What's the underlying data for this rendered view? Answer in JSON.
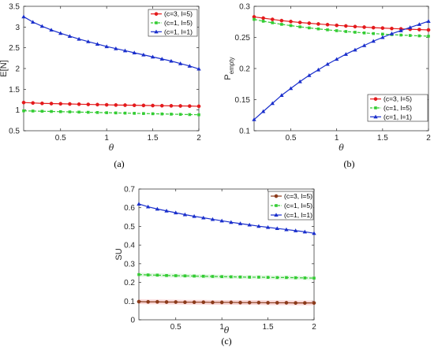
{
  "colors": {
    "red": "#e41a1c",
    "green": "#33cc33",
    "blue": "#1a2fcc",
    "brown": "#8b3a1a",
    "axis": "#262626"
  },
  "chart_data": [
    {
      "id": "a",
      "type": "line",
      "caption": "(a)",
      "xlabel": "θ",
      "ylabel": "E[N]",
      "xlim": [
        0.1,
        2
      ],
      "ylim": [
        0.5,
        3.5
      ],
      "xticks": [
        0.5,
        1,
        1.5,
        2
      ],
      "xtick_labels": [
        "0.5",
        "1",
        "1.5",
        "2"
      ],
      "yticks": [
        0.5,
        1,
        1.5,
        2,
        2.5,
        3,
        3.5
      ],
      "ytick_labels": [
        "0.5",
        "1",
        "1.5",
        "2",
        "2.5",
        "3",
        "3.5"
      ],
      "legend_position": "top-right",
      "x": [
        0.1,
        0.2,
        0.3,
        0.4,
        0.5,
        0.6,
        0.7,
        0.8,
        0.9,
        1.0,
        1.1,
        1.2,
        1.3,
        1.4,
        1.5,
        1.6,
        1.7,
        1.8,
        1.9,
        2.0
      ],
      "series": [
        {
          "name": "(c=3, l=5)",
          "color": "red",
          "marker": "circle",
          "dash": "solid",
          "values": [
            1.18,
            1.17,
            1.16,
            1.155,
            1.15,
            1.145,
            1.14,
            1.135,
            1.13,
            1.125,
            1.12,
            1.117,
            1.114,
            1.11,
            1.107,
            1.104,
            1.101,
            1.098,
            1.095,
            1.09
          ]
        },
        {
          "name": "(c=1, l=5)",
          "color": "green",
          "marker": "square",
          "dash": "dashed",
          "values": [
            0.98,
            0.975,
            0.97,
            0.965,
            0.96,
            0.955,
            0.95,
            0.945,
            0.94,
            0.935,
            0.93,
            0.925,
            0.92,
            0.915,
            0.91,
            0.905,
            0.9,
            0.895,
            0.89,
            0.885
          ]
        },
        {
          "name": "(c=1, l=1)",
          "color": "blue",
          "marker": "triangle",
          "dash": "solid",
          "values": [
            3.25,
            3.12,
            3.02,
            2.93,
            2.85,
            2.78,
            2.71,
            2.65,
            2.59,
            2.53,
            2.48,
            2.43,
            2.38,
            2.33,
            2.28,
            2.23,
            2.18,
            2.12,
            2.06,
            1.99
          ]
        }
      ]
    },
    {
      "id": "b",
      "type": "line",
      "caption": "(b)",
      "xlabel": "θ",
      "ylabel": "P",
      "ylabel_sub": "empty",
      "xlim": [
        0.1,
        2
      ],
      "ylim": [
        0.1,
        0.3
      ],
      "xticks": [
        0.5,
        1,
        1.5,
        2
      ],
      "xtick_labels": [
        "0.5",
        "1",
        "1.5",
        "2"
      ],
      "yticks": [
        0.1,
        0.15,
        0.2,
        0.25,
        0.3
      ],
      "ytick_labels": [
        "0.1",
        "0.15",
        "0.2",
        "0.25",
        "0.3"
      ],
      "legend_position": "bottom-right",
      "x": [
        0.1,
        0.2,
        0.3,
        0.4,
        0.5,
        0.6,
        0.7,
        0.8,
        0.9,
        1.0,
        1.1,
        1.2,
        1.3,
        1.4,
        1.5,
        1.6,
        1.7,
        1.8,
        1.9,
        2.0
      ],
      "series": [
        {
          "name": "(c=3, l=5)",
          "color": "red",
          "marker": "circle",
          "dash": "solid",
          "values": [
            0.283,
            0.281,
            0.279,
            0.277,
            0.2755,
            0.274,
            0.2728,
            0.2716,
            0.2705,
            0.2694,
            0.2684,
            0.2674,
            0.2665,
            0.2657,
            0.265,
            0.2643,
            0.2637,
            0.2631,
            0.2626,
            0.262
          ]
        },
        {
          "name": "(c=1, l=5)",
          "color": "green",
          "marker": "square",
          "dash": "dashed",
          "values": [
            0.279,
            0.276,
            0.2735,
            0.271,
            0.269,
            0.267,
            0.2653,
            0.2637,
            0.2622,
            0.2608,
            0.2595,
            0.2583,
            0.2572,
            0.2562,
            0.2553,
            0.2545,
            0.2538,
            0.2531,
            0.2525,
            0.252
          ]
        },
        {
          "name": "(c=1, l=1)",
          "color": "blue",
          "marker": "triangle",
          "dash": "solid",
          "values": [
            0.118,
            0.131,
            0.144,
            0.157,
            0.168,
            0.179,
            0.189,
            0.198,
            0.207,
            0.215,
            0.223,
            0.23,
            0.237,
            0.244,
            0.25,
            0.256,
            0.261,
            0.266,
            0.271,
            0.276
          ]
        }
      ]
    },
    {
      "id": "c",
      "type": "line",
      "caption": "(c)",
      "xlabel": "θ",
      "ylabel": "SU",
      "xlim": [
        0.1,
        2
      ],
      "ylim": [
        0,
        0.7
      ],
      "xticks": [
        0.5,
        1,
        1.5,
        2
      ],
      "xtick_labels": [
        "0.5",
        "1",
        "1.5",
        "2"
      ],
      "yticks": [
        0,
        0.1,
        0.2,
        0.3,
        0.4,
        0.5,
        0.6,
        0.7
      ],
      "ytick_labels": [
        "0",
        "0.1",
        "0.2",
        "0.3",
        "0.4",
        "0.5",
        "0.6",
        "0.7"
      ],
      "legend_position": "top-right",
      "x": [
        0.1,
        0.2,
        0.3,
        0.4,
        0.5,
        0.6,
        0.7,
        0.8,
        0.9,
        1.0,
        1.1,
        1.2,
        1.3,
        1.4,
        1.5,
        1.6,
        1.7,
        1.8,
        1.9,
        2.0
      ],
      "series": [
        {
          "name": "(c=3, l=5)",
          "color": "brown",
          "marker": "circle",
          "dash": "solid",
          "values": [
            0.097,
            0.096,
            0.096,
            0.095,
            0.095,
            0.094,
            0.094,
            0.094,
            0.093,
            0.093,
            0.093,
            0.092,
            0.092,
            0.092,
            0.091,
            0.091,
            0.091,
            0.09,
            0.09,
            0.09
          ]
        },
        {
          "name": "(c=1, l=5)",
          "color": "green",
          "marker": "square",
          "dash": "dashed",
          "values": [
            0.242,
            0.24,
            0.239,
            0.237,
            0.236,
            0.235,
            0.234,
            0.233,
            0.232,
            0.231,
            0.23,
            0.229,
            0.228,
            0.228,
            0.227,
            0.226,
            0.226,
            0.225,
            0.224,
            0.223
          ]
        },
        {
          "name": "(c=1, l=1)",
          "color": "blue",
          "marker": "triangle",
          "dash": "solid",
          "values": [
            0.62,
            0.605,
            0.593,
            0.583,
            0.573,
            0.563,
            0.554,
            0.546,
            0.538,
            0.53,
            0.522,
            0.515,
            0.508,
            0.501,
            0.495,
            0.489,
            0.483,
            0.477,
            0.471,
            0.463
          ]
        }
      ]
    }
  ]
}
